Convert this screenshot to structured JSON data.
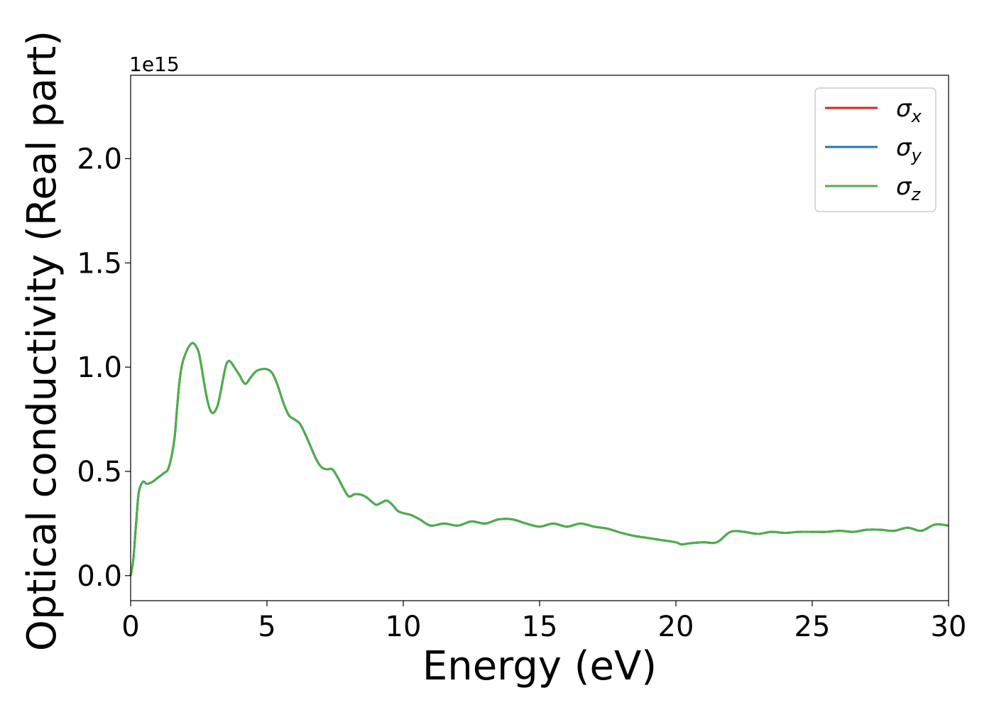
{
  "chart_data": {
    "type": "line",
    "xlabel": "Energy (eV)",
    "ylabel": "Optical conductivity (Real part)",
    "y_offset_label": "1e15",
    "xlim": [
      0,
      30
    ],
    "ylim": [
      -0.12,
      2.4
    ],
    "x_ticks": [
      0,
      5,
      10,
      15,
      20,
      25,
      30
    ],
    "x_tick_labels": [
      "0",
      "5",
      "10",
      "15",
      "20",
      "25",
      "30"
    ],
    "y_ticks": [
      0.0,
      0.5,
      1.0,
      1.5,
      2.0
    ],
    "y_tick_labels": [
      "0.0",
      "0.5",
      "1.0",
      "1.5",
      "2.0"
    ],
    "grid": false,
    "legend_position": "top-right",
    "x": [
      0,
      0.1,
      0.2,
      0.3,
      0.45,
      0.6,
      0.8,
      1.0,
      1.2,
      1.4,
      1.6,
      1.7,
      1.8,
      1.9,
      2.0,
      2.1,
      2.2,
      2.3,
      2.4,
      2.5,
      2.6,
      2.7,
      2.8,
      2.9,
      3.0,
      3.1,
      3.2,
      3.3,
      3.4,
      3.5,
      3.6,
      3.7,
      3.8,
      3.9,
      4.0,
      4.2,
      4.4,
      4.6,
      4.8,
      5.0,
      5.2,
      5.4,
      5.6,
      5.8,
      6.0,
      6.2,
      6.4,
      6.6,
      6.8,
      7.0,
      7.2,
      7.4,
      7.6,
      7.8,
      8.0,
      8.2,
      8.4,
      8.6,
      8.8,
      9.0,
      9.2,
      9.4,
      9.6,
      9.8,
      10.0,
      10.3,
      10.6,
      11.0,
      11.5,
      12.0,
      12.5,
      13.0,
      13.5,
      14.0,
      14.5,
      15.0,
      15.5,
      16.0,
      16.5,
      17.0,
      17.5,
      18.0,
      18.5,
      19.0,
      19.5,
      20.0,
      20.2,
      20.5,
      21.0,
      21.5,
      22.0,
      22.5,
      23.0,
      23.5,
      24.0,
      24.5,
      25.0,
      25.5,
      26.0,
      26.5,
      27.0,
      27.5,
      28.0,
      28.5,
      29.0,
      29.5,
      30.0
    ],
    "series": [
      {
        "name": "x",
        "color": "#d62728",
        "values": [
          0.0,
          0.08,
          0.25,
          0.4,
          0.45,
          0.44,
          0.45,
          0.47,
          0.49,
          0.52,
          0.65,
          0.8,
          0.94,
          1.02,
          1.06,
          1.09,
          1.11,
          1.115,
          1.1,
          1.07,
          1.0,
          0.92,
          0.85,
          0.8,
          0.78,
          0.79,
          0.82,
          0.88,
          0.95,
          1.01,
          1.03,
          1.02,
          1.0,
          0.98,
          0.96,
          0.92,
          0.95,
          0.98,
          0.99,
          0.99,
          0.97,
          0.91,
          0.83,
          0.77,
          0.75,
          0.73,
          0.68,
          0.62,
          0.56,
          0.52,
          0.51,
          0.51,
          0.47,
          0.42,
          0.38,
          0.39,
          0.39,
          0.38,
          0.36,
          0.34,
          0.35,
          0.36,
          0.34,
          0.31,
          0.3,
          0.29,
          0.27,
          0.24,
          0.25,
          0.24,
          0.26,
          0.25,
          0.27,
          0.27,
          0.25,
          0.235,
          0.25,
          0.235,
          0.25,
          0.235,
          0.225,
          0.205,
          0.19,
          0.18,
          0.17,
          0.16,
          0.15,
          0.155,
          0.16,
          0.16,
          0.21,
          0.21,
          0.2,
          0.21,
          0.205,
          0.21,
          0.21,
          0.21,
          0.215,
          0.21,
          0.22,
          0.22,
          0.215,
          0.23,
          0.215,
          0.245,
          0.24
        ]
      },
      {
        "name": "y",
        "color": "#1f77b4",
        "values": [
          0.0,
          0.08,
          0.25,
          0.4,
          0.45,
          0.44,
          0.45,
          0.47,
          0.49,
          0.52,
          0.65,
          0.8,
          0.94,
          1.02,
          1.06,
          1.09,
          1.11,
          1.115,
          1.1,
          1.07,
          1.0,
          0.92,
          0.85,
          0.8,
          0.78,
          0.79,
          0.82,
          0.88,
          0.95,
          1.01,
          1.03,
          1.02,
          1.0,
          0.98,
          0.96,
          0.92,
          0.95,
          0.98,
          0.99,
          0.99,
          0.97,
          0.91,
          0.83,
          0.77,
          0.75,
          0.73,
          0.68,
          0.62,
          0.56,
          0.52,
          0.51,
          0.51,
          0.47,
          0.42,
          0.38,
          0.39,
          0.39,
          0.38,
          0.36,
          0.34,
          0.35,
          0.36,
          0.34,
          0.31,
          0.3,
          0.29,
          0.27,
          0.24,
          0.25,
          0.24,
          0.26,
          0.25,
          0.27,
          0.27,
          0.25,
          0.235,
          0.25,
          0.235,
          0.25,
          0.235,
          0.225,
          0.205,
          0.19,
          0.18,
          0.17,
          0.16,
          0.15,
          0.155,
          0.16,
          0.16,
          0.21,
          0.21,
          0.2,
          0.21,
          0.205,
          0.21,
          0.21,
          0.21,
          0.215,
          0.21,
          0.22,
          0.22,
          0.215,
          0.23,
          0.215,
          0.245,
          0.24
        ]
      },
      {
        "name": "z",
        "color": "#4daf4a",
        "values": [
          0.0,
          0.08,
          0.25,
          0.4,
          0.45,
          0.44,
          0.45,
          0.47,
          0.49,
          0.52,
          0.65,
          0.8,
          0.94,
          1.02,
          1.06,
          1.09,
          1.11,
          1.115,
          1.1,
          1.07,
          1.0,
          0.92,
          0.85,
          0.8,
          0.78,
          0.79,
          0.82,
          0.88,
          0.95,
          1.01,
          1.03,
          1.02,
          1.0,
          0.98,
          0.96,
          0.92,
          0.95,
          0.98,
          0.99,
          0.99,
          0.97,
          0.91,
          0.83,
          0.77,
          0.75,
          0.73,
          0.68,
          0.62,
          0.56,
          0.52,
          0.51,
          0.51,
          0.47,
          0.42,
          0.38,
          0.39,
          0.39,
          0.38,
          0.36,
          0.34,
          0.35,
          0.36,
          0.34,
          0.31,
          0.3,
          0.29,
          0.27,
          0.24,
          0.25,
          0.24,
          0.26,
          0.25,
          0.27,
          0.27,
          0.25,
          0.235,
          0.25,
          0.235,
          0.25,
          0.235,
          0.225,
          0.205,
          0.19,
          0.18,
          0.17,
          0.16,
          0.15,
          0.155,
          0.16,
          0.16,
          0.21,
          0.21,
          0.2,
          0.21,
          0.205,
          0.21,
          0.21,
          0.21,
          0.215,
          0.21,
          0.22,
          0.22,
          0.215,
          0.23,
          0.215,
          0.245,
          0.24
        ]
      }
    ],
    "legend": [
      {
        "symbol": "σ",
        "sub": "x",
        "color": "#d62728"
      },
      {
        "symbol": "σ",
        "sub": "y",
        "color": "#1f77b4"
      },
      {
        "symbol": "σ",
        "sub": "z",
        "color": "#4daf4a"
      }
    ]
  }
}
